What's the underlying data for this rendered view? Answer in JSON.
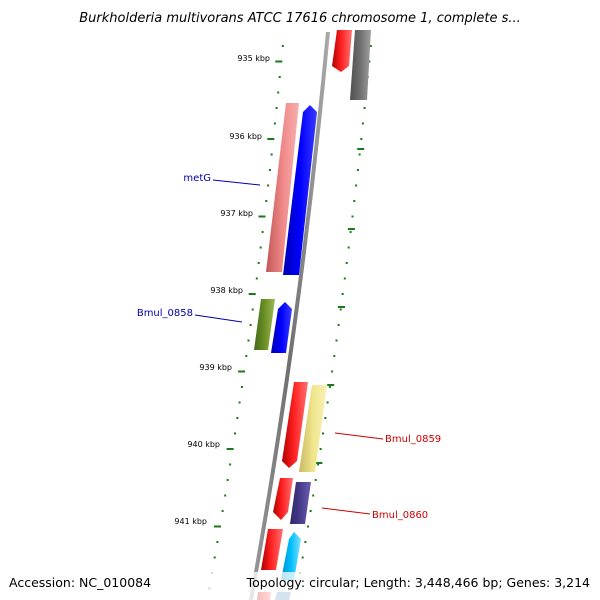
{
  "title": "Burkholderia multivorans ATCC 17616 chromosome 1, complete s...",
  "accession": "Accession: NC_010084",
  "topology": "Topology: circular; Length: 3,448,466 bp; Genes: 3,214",
  "ticks": [
    "935 kbp",
    "936 kbp",
    "937 kbp",
    "938 kbp",
    "939 kbp",
    "940 kbp",
    "941 kbp"
  ],
  "gene_labels": [
    {
      "name": "metG",
      "color": "#0000aa"
    },
    {
      "name": "Bmul_0858",
      "color": "#0000aa"
    },
    {
      "name": "Bmul_0859",
      "color": "#cc0000"
    },
    {
      "name": "Bmul_0860",
      "color": "#cc0000"
    }
  ],
  "colors": {
    "backbone": "#808080",
    "tick_dots": "#1a7a1a",
    "red": "#ff0000",
    "salmon": "#f08080",
    "blue": "#0000ff",
    "olive": "#5a8a2a",
    "yellow": "#f0e68c",
    "purple": "#483d8b",
    "cyan": "#00bfff",
    "gray": "#707070"
  }
}
